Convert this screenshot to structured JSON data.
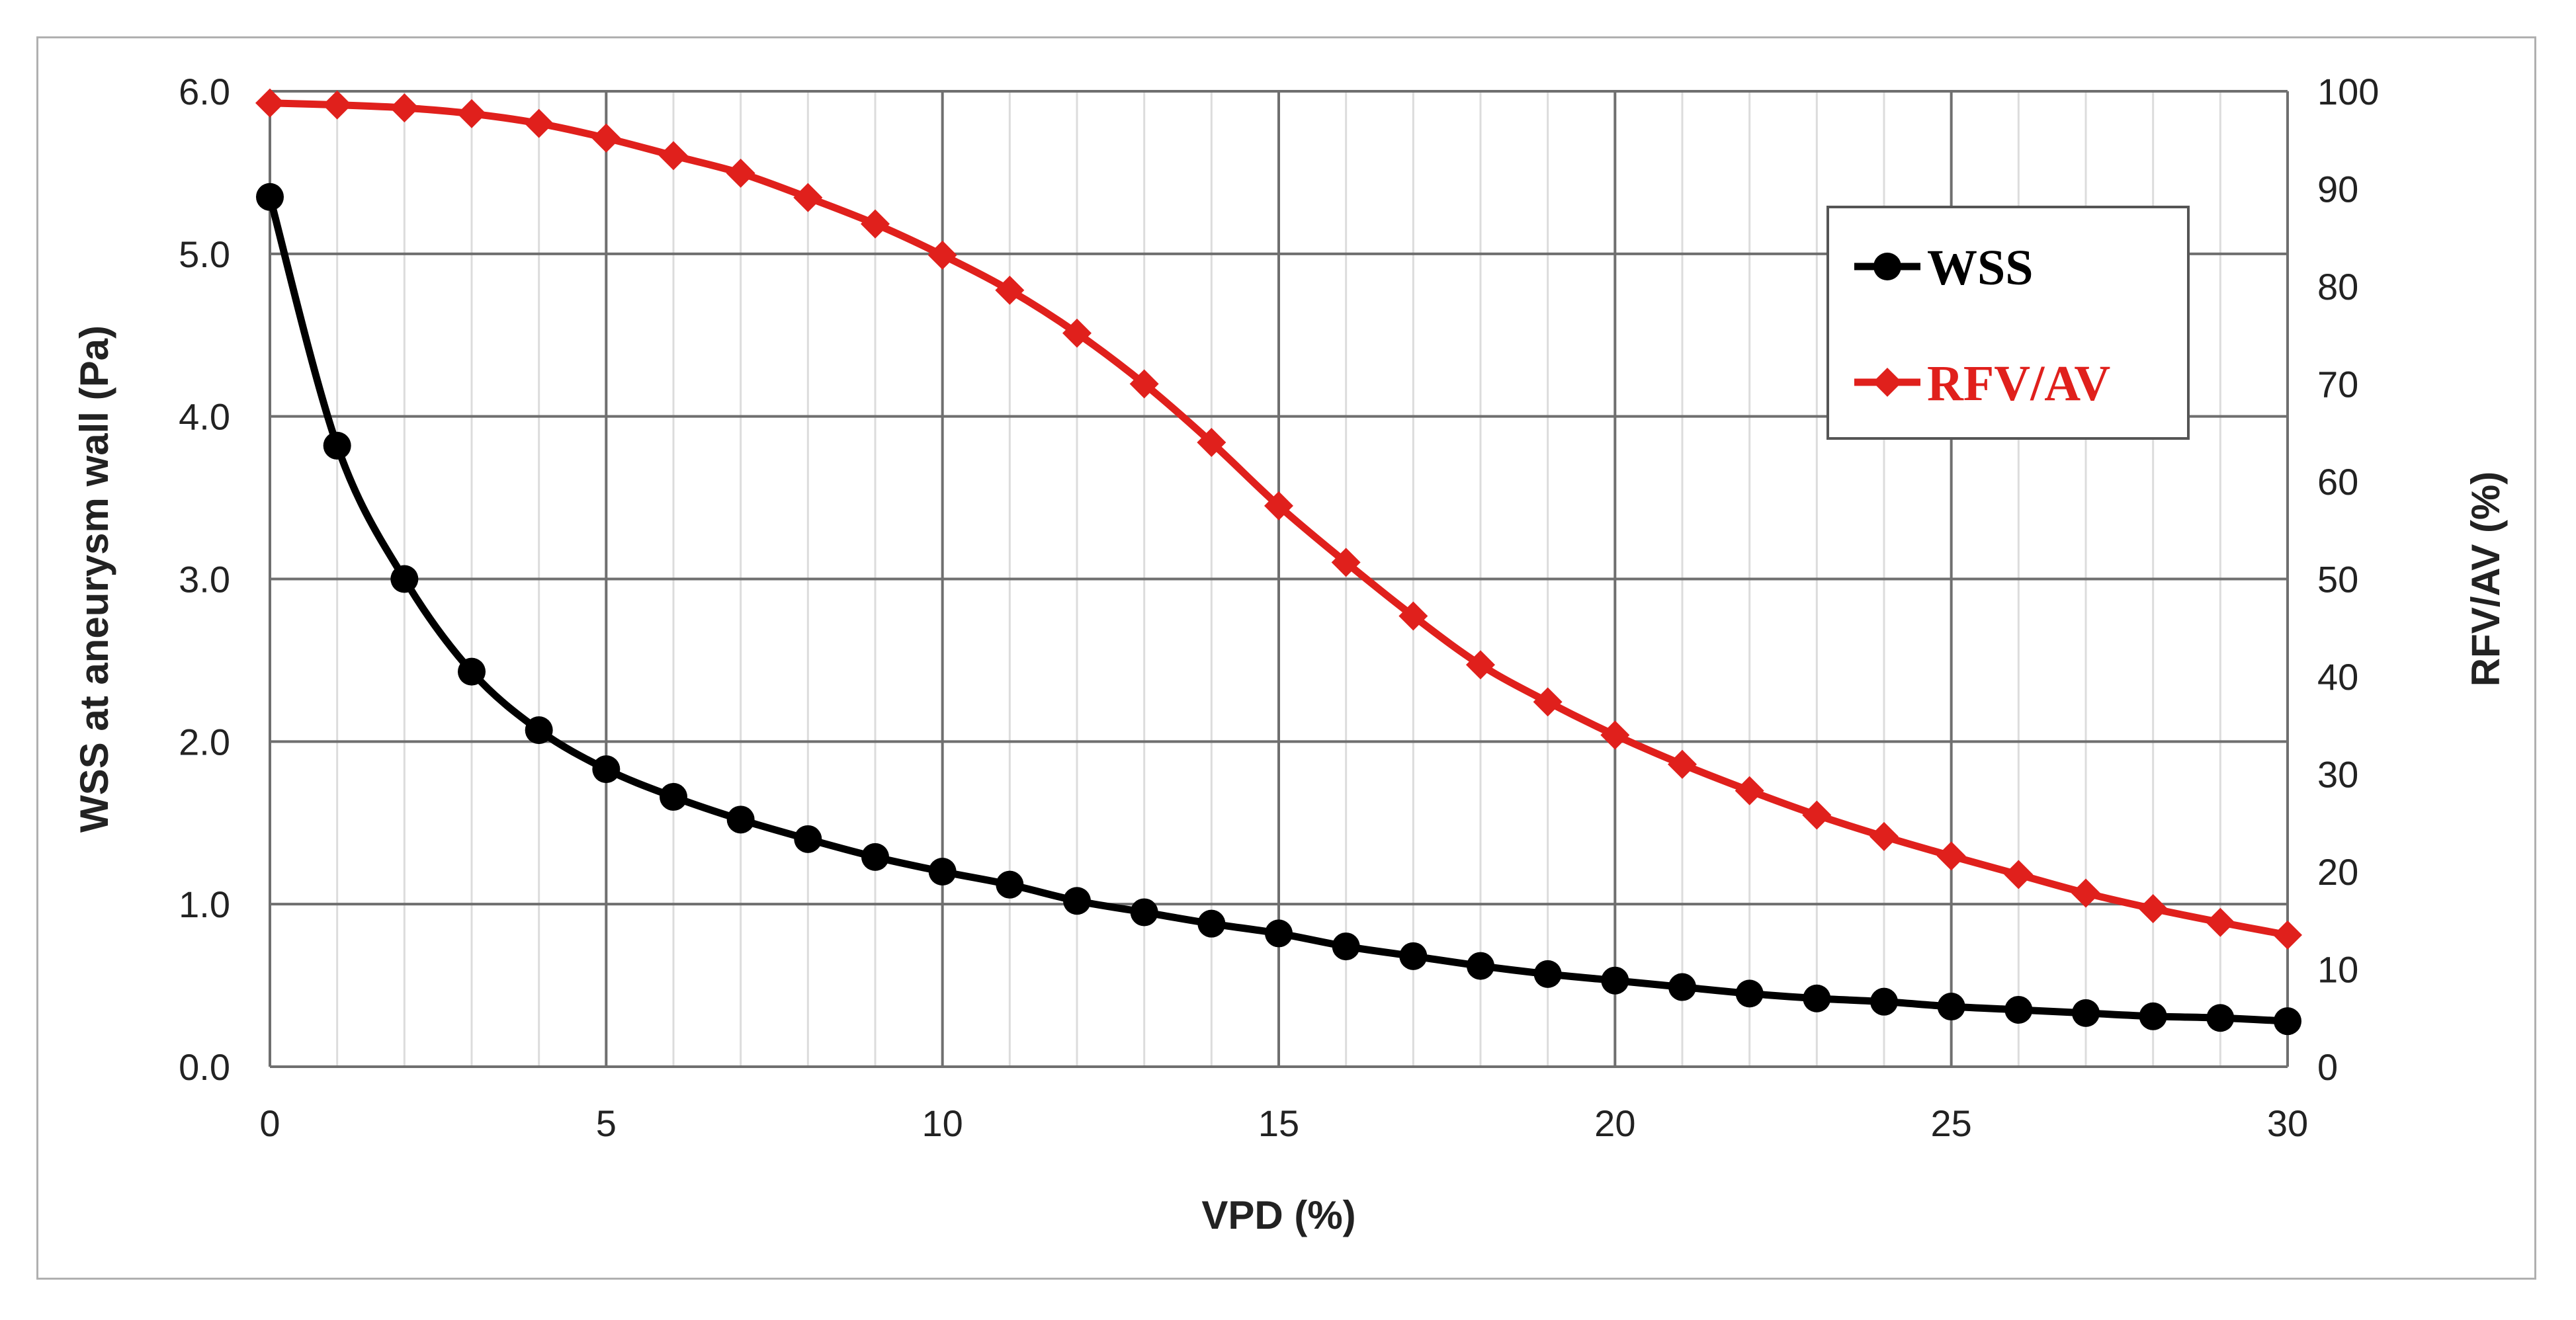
{
  "chart_data": {
    "type": "line",
    "title": "",
    "xlabel": "VPD (%)",
    "ylabel_left": "WSS at aneurysm wall (Pa)",
    "ylabel_right": "RFV/AV (%)",
    "xlim": [
      0,
      30
    ],
    "ylim_left": [
      0,
      6
    ],
    "ylim_right": [
      0,
      100
    ],
    "x_ticks": [
      0,
      5,
      10,
      15,
      20,
      25,
      30
    ],
    "x_tick_labels": [
      "0",
      "5",
      "10",
      "15",
      "20",
      "25",
      "30"
    ],
    "y_left_ticks": [
      0,
      1,
      2,
      3,
      4,
      5,
      6
    ],
    "y_left_tick_labels": [
      "0.0",
      "1.0",
      "2.0",
      "3.0",
      "4.0",
      "5.0",
      "6.0"
    ],
    "y_right_ticks": [
      0,
      10,
      20,
      30,
      40,
      50,
      60,
      70,
      80,
      90,
      100
    ],
    "y_right_tick_labels": [
      "0",
      "10",
      "20",
      "30",
      "40",
      "50",
      "60",
      "70",
      "80",
      "90",
      "100"
    ],
    "grid": true,
    "legend_position": "top-right",
    "x": [
      0,
      1,
      2,
      3,
      4,
      5,
      6,
      7,
      8,
      9,
      10,
      11,
      12,
      13,
      14,
      15,
      16,
      17,
      18,
      19,
      20,
      21,
      22,
      23,
      24,
      25,
      26,
      27,
      28,
      29,
      30
    ],
    "series": [
      {
        "name": "WSS",
        "axis": "left",
        "marker": "circle",
        "color": "#000000",
        "values": [
          5.35,
          3.82,
          3.0,
          2.43,
          2.07,
          1.83,
          1.66,
          1.52,
          1.4,
          1.29,
          1.2,
          1.12,
          1.02,
          0.95,
          0.88,
          0.82,
          0.74,
          0.68,
          0.62,
          0.57,
          0.53,
          0.49,
          0.45,
          0.42,
          0.4,
          0.37,
          0.35,
          0.33,
          0.31,
          0.3,
          0.28
        ]
      },
      {
        "name": "RFV/AV",
        "axis": "right",
        "marker": "diamond",
        "color": "#e0201c",
        "values": [
          98.8,
          98.6,
          98.3,
          97.7,
          96.7,
          95.2,
          93.4,
          91.6,
          89.1,
          86.4,
          83.2,
          79.6,
          75.2,
          70.0,
          64.0,
          57.5,
          51.7,
          46.2,
          41.2,
          37.4,
          34.0,
          31.0,
          28.3,
          25.8,
          23.6,
          21.6,
          19.7,
          17.8,
          16.2,
          14.8,
          13.5
        ]
      }
    ]
  }
}
